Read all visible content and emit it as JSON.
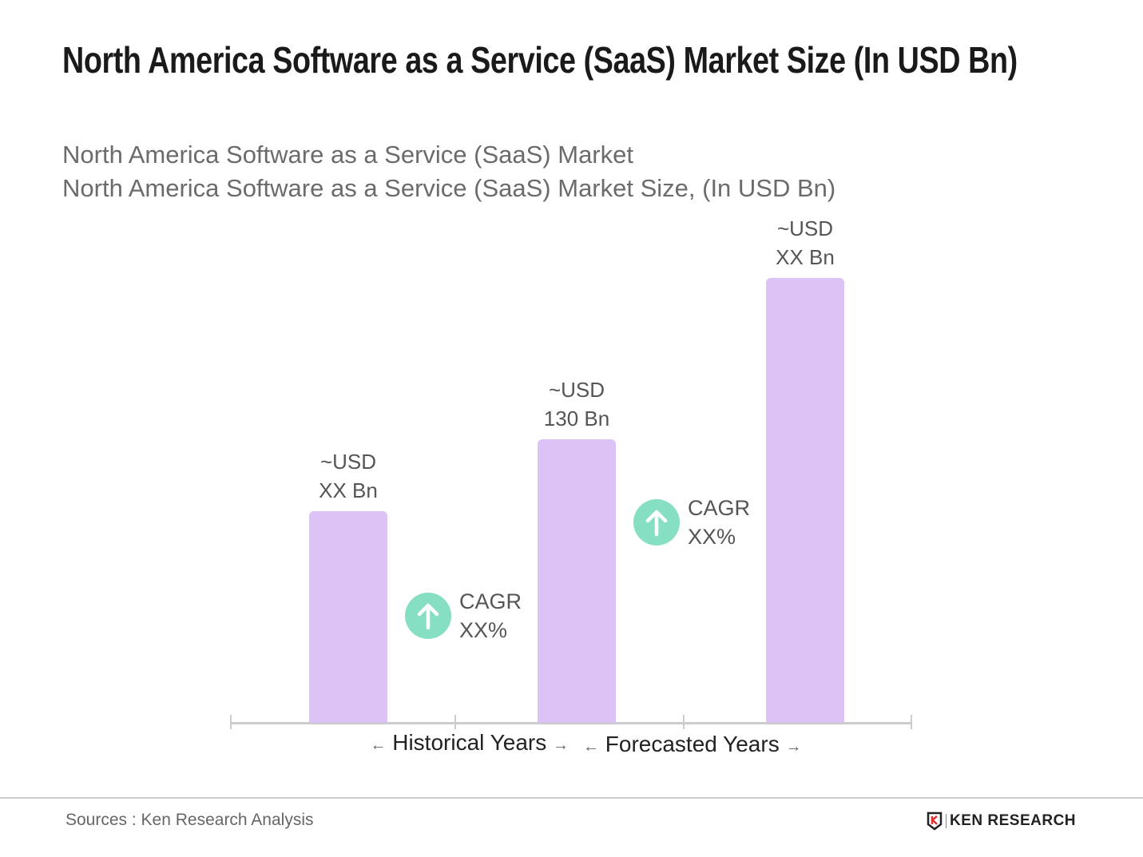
{
  "title": "North America Software as a Service (SaaS) Market Size (In USD Bn)",
  "subtitle1": "North America Software as a Service (SaaS) Market",
  "subtitle2": "North America Software as a Service (SaaS) Market Size, (In USD Bn)",
  "chart_data": {
    "type": "bar",
    "categories": [
      "",
      "",
      ""
    ],
    "values": [
      97,
      130,
      204
    ],
    "value_labels": [
      [
        "~USD",
        "XX Bn"
      ],
      [
        "~USD",
        "130 Bn"
      ],
      [
        "~USD",
        "XX Bn"
      ]
    ],
    "bar_color": "#dcc2f5",
    "cagr": [
      [
        "CAGR",
        "XX%"
      ],
      [
        "CAGR",
        "XX%"
      ]
    ],
    "cagr_color": "#86dfc3",
    "periods": [
      "Historical Years",
      "Forecasted Years"
    ],
    "grid": false
  },
  "source": "Sources : Ken Research Analysis",
  "logo": "KEN RESEARCH"
}
